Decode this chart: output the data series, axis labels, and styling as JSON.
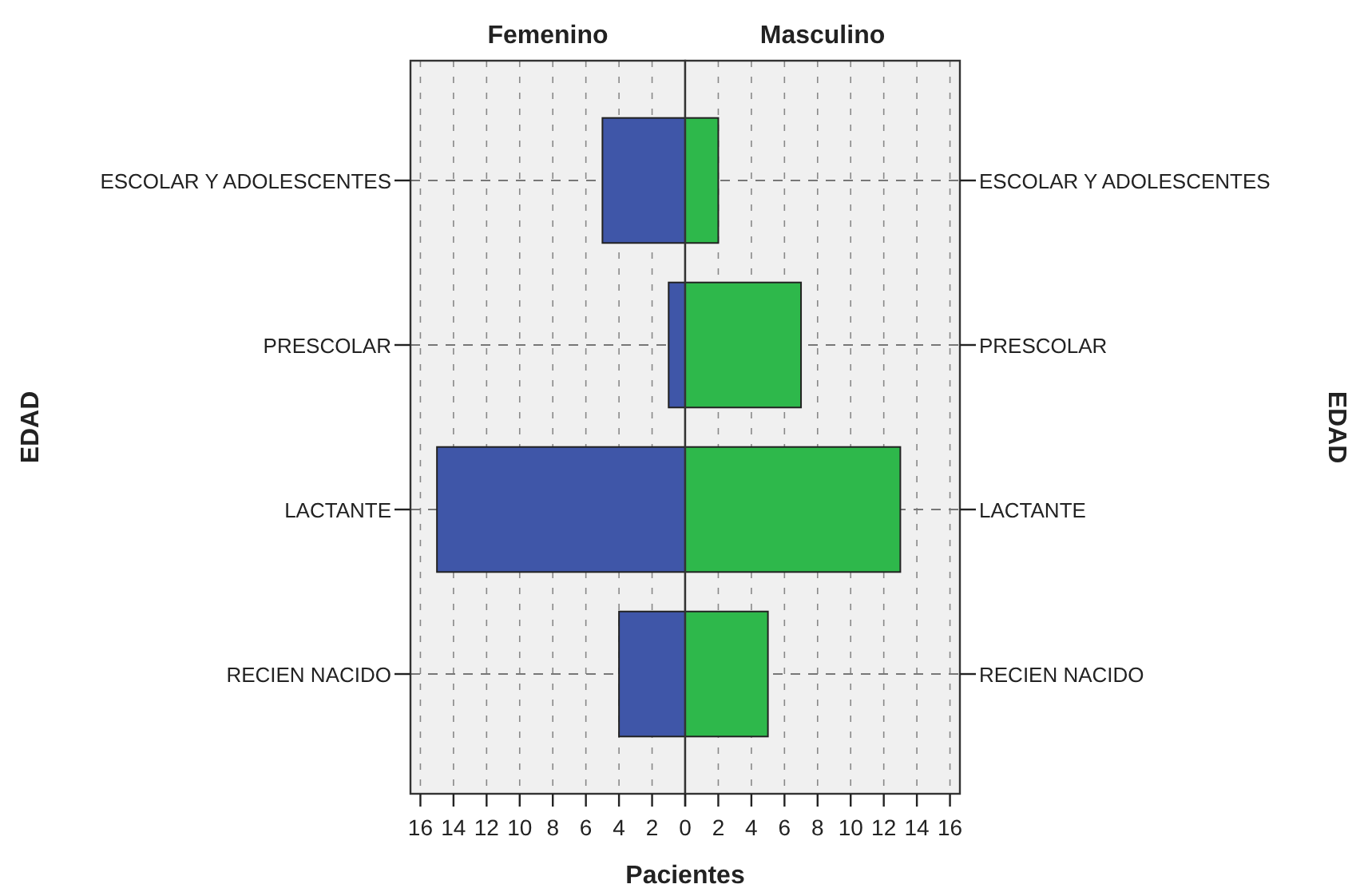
{
  "chart_data": [
    {
      "type": "bar",
      "orientation": "horizontal",
      "title": "Femenino",
      "ylabel": "EDAD",
      "xlabel": "Pacientes",
      "categories": [
        "ESCOLAR Y ADOLESCENTES",
        "PRESCOLAR",
        "LACTANTE",
        "RECIEN NACIDO"
      ],
      "series": [
        {
          "color": "#3f56a8",
          "values": [
            5,
            1,
            15,
            4
          ]
        }
      ],
      "xlim": [
        16.6,
        0
      ],
      "xticks": [
        16,
        14,
        12,
        10,
        8,
        6,
        4,
        2,
        {
          "value": 0,
          "label": null
        }
      ],
      "grid": true
    },
    {
      "type": "bar",
      "orientation": "horizontal",
      "title": "Masculino",
      "ylabel": "EDAD",
      "categories": [
        "ESCOLAR Y ADOLESCENTES",
        "PRESCOLAR",
        "LACTANTE",
        "RECIEN NACIDO"
      ],
      "series": [
        {
          "color": "#2eb84b",
          "values": [
            2,
            7,
            13,
            5
          ]
        }
      ],
      "xlim": [
        0,
        16.6
      ],
      "xticks": [
        0,
        2,
        4,
        6,
        8,
        10,
        12,
        14,
        16
      ],
      "grid": true
    }
  ]
}
